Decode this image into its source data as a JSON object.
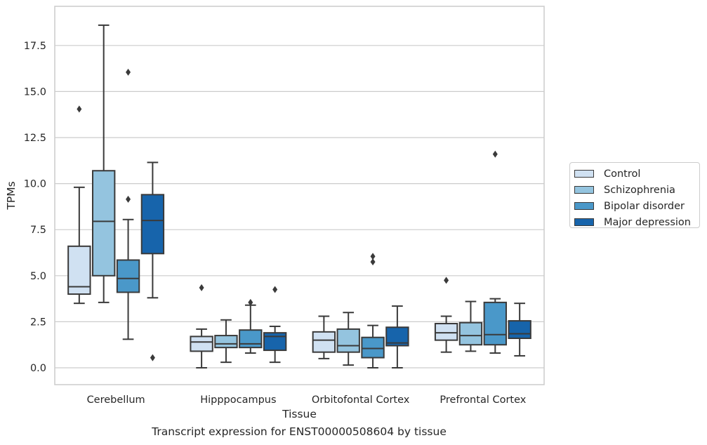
{
  "chart_data": {
    "type": "box",
    "caption": "Transcript expression for ENST00000508604 by tissue",
    "xlabel": "Tissue",
    "ylabel": "TPMs",
    "ylim": [
      -0.9,
      19.5
    ],
    "yticks": [
      "0.0",
      "2.5",
      "5.0",
      "7.5",
      "10.0",
      "12.5",
      "15.0",
      "17.5"
    ],
    "grid": "horizontal",
    "legend_placement": "outside-right",
    "categories": [
      "Cerebellum",
      "Hipppocampus",
      "Orbitofontal Cortex",
      "Prefrontal Cortex"
    ],
    "series": [
      {
        "name": "Control",
        "color": "#d0e1f2",
        "boxes": [
          {
            "whislo": 3.5,
            "q1": 4.0,
            "med": 4.4,
            "q3": 6.6,
            "whishi": 9.8,
            "fliers": [
              14.05
            ]
          },
          {
            "whislo": 0.0,
            "q1": 0.9,
            "med": 1.4,
            "q3": 1.7,
            "whishi": 2.1,
            "fliers": [
              4.35
            ]
          },
          {
            "whislo": 0.5,
            "q1": 0.85,
            "med": 1.5,
            "q3": 1.95,
            "whishi": 2.8,
            "fliers": []
          },
          {
            "whislo": 0.85,
            "q1": 1.5,
            "med": 1.9,
            "q3": 2.4,
            "whishi": 2.8,
            "fliers": [
              4.75
            ]
          }
        ]
      },
      {
        "name": "Schizophrenia",
        "color": "#94c4df",
        "boxes": [
          {
            "whislo": 3.55,
            "q1": 5.0,
            "med": 7.95,
            "q3": 10.7,
            "whishi": 18.6,
            "fliers": []
          },
          {
            "whislo": 0.3,
            "q1": 1.1,
            "med": 1.3,
            "q3": 1.75,
            "whishi": 2.6,
            "fliers": []
          },
          {
            "whislo": 0.15,
            "q1": 0.85,
            "med": 1.2,
            "q3": 2.1,
            "whishi": 3.0,
            "fliers": []
          },
          {
            "whislo": 0.9,
            "q1": 1.25,
            "med": 1.75,
            "q3": 2.45,
            "whishi": 3.6,
            "fliers": []
          }
        ]
      },
      {
        "name": "Bipolar disorder",
        "color": "#4a98c9",
        "boxes": [
          {
            "whislo": 1.55,
            "q1": 4.1,
            "med": 4.85,
            "q3": 5.85,
            "whishi": 8.05,
            "fliers": [
              9.15,
              16.05
            ]
          },
          {
            "whislo": 0.8,
            "q1": 1.1,
            "med": 1.3,
            "q3": 2.05,
            "whishi": 3.4,
            "fliers": [
              3.55
            ]
          },
          {
            "whislo": 0.0,
            "q1": 0.55,
            "med": 1.05,
            "q3": 1.65,
            "whishi": 2.3,
            "fliers": [
              5.75,
              6.05
            ]
          },
          {
            "whislo": 0.8,
            "q1": 1.25,
            "med": 1.8,
            "q3": 3.55,
            "whishi": 3.75,
            "fliers": [
              11.6
            ]
          }
        ]
      },
      {
        "name": "Major depression",
        "color": "#1764ab",
        "boxes": [
          {
            "whislo": 3.8,
            "q1": 6.2,
            "med": 8.0,
            "q3": 9.4,
            "whishi": 11.15,
            "fliers": [
              0.55
            ]
          },
          {
            "whislo": 0.3,
            "q1": 0.95,
            "med": 1.7,
            "q3": 1.9,
            "whishi": 2.25,
            "fliers": [
              4.25
            ]
          },
          {
            "whislo": 0.0,
            "q1": 1.2,
            "med": 1.35,
            "q3": 2.2,
            "whishi": 3.35,
            "fliers": []
          },
          {
            "whislo": 0.65,
            "q1": 1.6,
            "med": 1.85,
            "q3": 2.55,
            "whishi": 3.5,
            "fliers": []
          }
        ]
      }
    ]
  }
}
